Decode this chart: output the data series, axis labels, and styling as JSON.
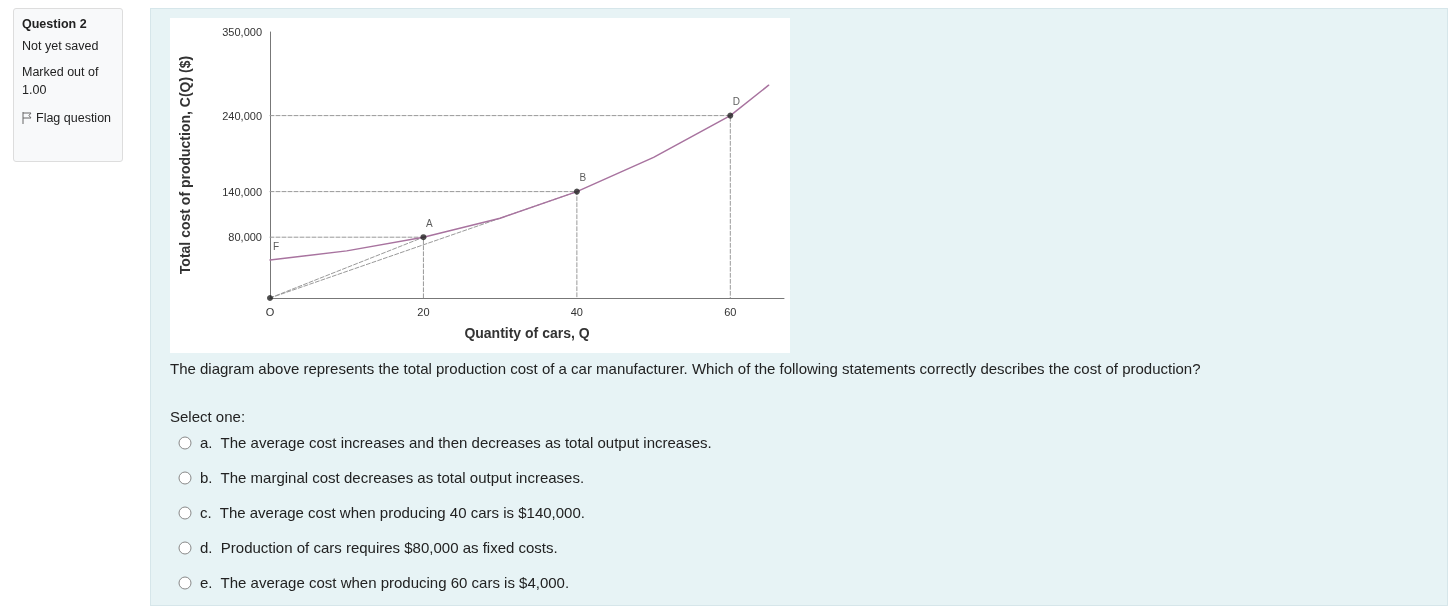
{
  "chart_data": {
    "type": "line",
    "xlabel": "Quantity of cars, Q",
    "ylabel": "Total cost of production, C(Q) ($)",
    "xlim": [
      0,
      67
    ],
    "xticks": [
      {
        "value": 0,
        "label": "O"
      },
      20,
      40,
      60
    ],
    "ylim": [
      0,
      350000
    ],
    "yticks": [
      {
        "value": 80000,
        "label": "80,000"
      },
      {
        "value": 140000,
        "label": "140,000"
      },
      {
        "value": 240000,
        "label": "240,000"
      },
      {
        "value": 350000,
        "label": "350,000"
      }
    ],
    "grid": false,
    "marker": "none",
    "series": [
      {
        "x": [
          0,
          20
        ],
        "values": [
          0,
          80000
        ],
        "color": "#999999",
        "line_style": "dashed"
      },
      {
        "x": [
          0,
          40
        ],
        "values": [
          0,
          140000
        ],
        "color": "#999999",
        "line_style": "dashed"
      },
      {
        "x": [
          0,
          20,
          20
        ],
        "values": [
          80000,
          80000,
          0
        ],
        "color": "#999999",
        "line_style": "dashed"
      },
      {
        "x": [
          0,
          40,
          40
        ],
        "values": [
          140000,
          140000,
          0
        ],
        "color": "#999999",
        "line_style": "dashed"
      },
      {
        "x": [
          0,
          60,
          60
        ],
        "values": [
          240000,
          240000,
          0
        ],
        "color": "#999999",
        "line_style": "dashed"
      },
      {
        "x": [
          0,
          10,
          20,
          30,
          40,
          50,
          60,
          65
        ],
        "values": [
          50000,
          62000,
          80000,
          105000,
          140000,
          185000,
          240000,
          280000
        ],
        "color": "#a8739f",
        "line_style": "solid"
      },
      {
        "type": "scatter",
        "x": [
          0,
          20,
          40,
          60
        ],
        "values": [
          0,
          80000,
          140000,
          240000
        ],
        "color": "#222222",
        "marker": "circle"
      }
    ],
    "annotations": [
      {
        "text": "F",
        "x": 0,
        "y": 50000
      },
      {
        "text": "A",
        "x": 20,
        "y": 80000
      },
      {
        "text": "B",
        "x": 40,
        "y": 140000
      },
      {
        "text": "D",
        "x": 60,
        "y": 240000
      },
      "Question 2",
      "Not yet saved",
      "Marked out of 1.00",
      "Flag question",
      "The diagram above represents the total production cost of a car manufacturer. Which of the following statements correctly describes the cost of production?",
      "Select one:",
      "a.  The average cost increases and then decreases as total output increases.",
      "b.  The marginal cost decreases as total output increases.",
      "c.  The average cost when producing 40 cars is $140,000.",
      "d.  Production of cars requires $80,000 as fixed costs.",
      "e.  The average cost when producing 60 cars is $4,000."
    ]
  }
}
